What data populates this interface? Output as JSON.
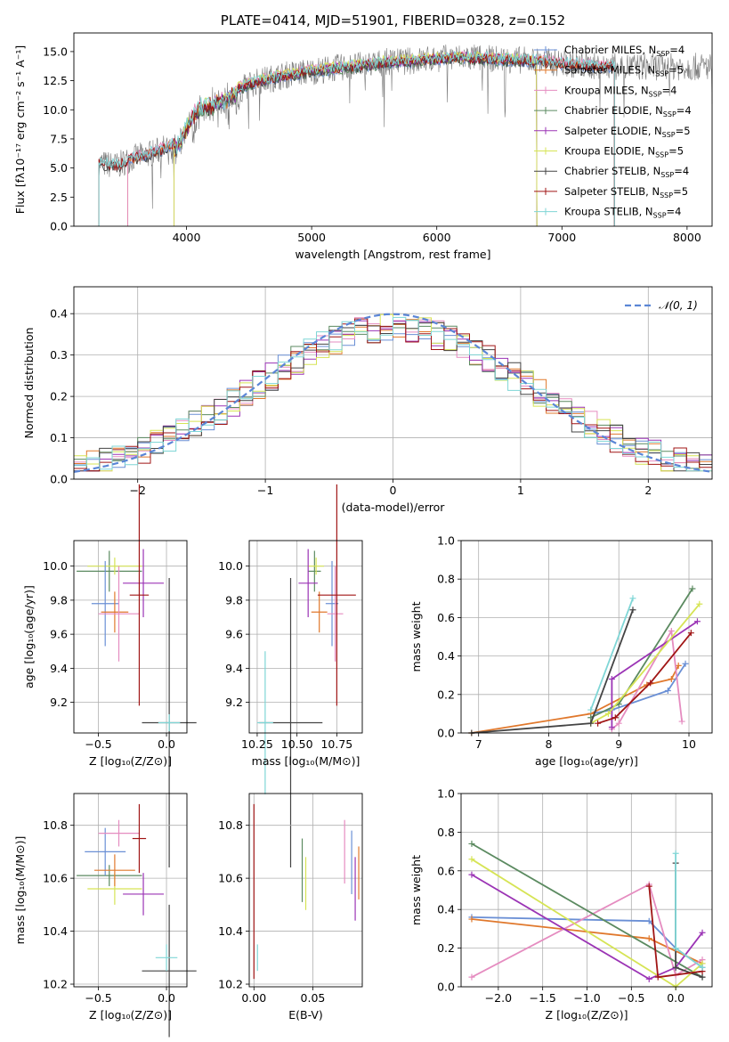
{
  "chart_data": [
    {
      "id": "spectrum",
      "type": "line",
      "title": "PLATE=0414, MJD=51901, FIBERID=0328, z=0.152",
      "xlabel": "wavelength [Angstrom, rest frame]",
      "ylabel": "Flux [fλ10⁻¹⁷ erg cm⁻² s⁻¹ A⁻¹]",
      "xlim": [
        3100,
        8200
      ],
      "ylim": [
        0,
        16.6
      ],
      "xticks": [
        "4000",
        "5000",
        "6000",
        "7000",
        "8000"
      ],
      "yticks": [
        "0.0",
        "2.5",
        "5.0",
        "7.5",
        "10.0",
        "12.5",
        "15.0"
      ],
      "grid": false,
      "legend_position": "top-right",
      "continuum": {
        "x": [
          3300,
          3450,
          3550,
          3700,
          3850,
          3950,
          4000,
          4100,
          4200,
          4300,
          4400,
          4500,
          4600,
          4800,
          5000,
          5200,
          5400,
          5600,
          5800,
          6000,
          6200,
          6400,
          6600,
          6800,
          7000,
          7200,
          7400
        ],
        "y": [
          5.4,
          5.2,
          5.8,
          6.2,
          6.8,
          7.5,
          9.0,
          10.5,
          10.8,
          11.2,
          11.8,
          12.2,
          12.5,
          13.0,
          13.3,
          13.6,
          13.8,
          14.1,
          14.2,
          14.4,
          14.5,
          14.4,
          14.3,
          14.2,
          14.0,
          13.8,
          13.7
        ]
      },
      "series": [
        {
          "name": "Chabrier MILES",
          "sub": "SSP",
          "n": "4",
          "color": "#6a8fd5",
          "xmin": 3530,
          "xmax": 7420
        },
        {
          "name": "Salpeter MILES",
          "sub": "SSP",
          "n": "5",
          "color": "#e0782c",
          "xmin": 3530,
          "xmax": 7420
        },
        {
          "name": "Kroupa MILES",
          "sub": "SSP",
          "n": "4",
          "color": "#e58cc0",
          "xmin": 3530,
          "xmax": 7420
        },
        {
          "name": "Chabrier ELODIE",
          "sub": "SSP",
          "n": "4",
          "color": "#5b8a60",
          "xmin": 3900,
          "xmax": 6800
        },
        {
          "name": "Salpeter ELODIE",
          "sub": "SSP",
          "n": "5",
          "color": "#9b34b5",
          "xmin": 3900,
          "xmax": 6800
        },
        {
          "name": "Kroupa ELODIE",
          "sub": "SSP",
          "n": "5",
          "color": "#d6e455",
          "xmin": 3900,
          "xmax": 6800
        },
        {
          "name": "Chabrier STELIB",
          "sub": "SSP",
          "n": "4",
          "color": "#444444",
          "xmin": 3300,
          "xmax": 7420
        },
        {
          "name": "Salpeter STELIB",
          "sub": "SSP",
          "n": "5",
          "color": "#a01515",
          "xmin": 3300,
          "xmax": 7420
        },
        {
          "name": "Kroupa STELIB",
          "sub": "SSP",
          "n": "4",
          "color": "#7fd6d6",
          "xmin": 3300,
          "xmax": 7420
        }
      ]
    },
    {
      "id": "residuals",
      "type": "histogram",
      "xlabel": "(data-model)/error",
      "ylabel": "Normed distribution",
      "xlim": [
        -2.5,
        2.5
      ],
      "ylim": [
        0,
        0.465
      ],
      "xticks": [
        "−2",
        "−1",
        "0",
        "1",
        "2"
      ],
      "yticks": [
        "0.0",
        "0.1",
        "0.2",
        "0.3",
        "0.4"
      ],
      "grid": true,
      "legend_position": "top-right",
      "legend": [
        "𝒩(0, 1)"
      ],
      "bin_width": 0.1,
      "reference_curve": {
        "name": "𝒩(0, 1)",
        "mean": 0,
        "sigma": 1,
        "color": "#5b86d6"
      }
    },
    {
      "id": "age_vs_z",
      "type": "errorbar",
      "xlabel": "Z [log₁₀(Z/Z⊙)]",
      "ylabel": "age  [log₁₀(age/yr)]",
      "xlim": [
        -0.68,
        0.15
      ],
      "ylim": [
        9.02,
        10.15
      ],
      "xticks": [
        "−0.5",
        "0.0"
      ],
      "xtick_values": [
        -0.5,
        0.0
      ],
      "yticks": [
        "9.2",
        "9.4",
        "9.6",
        "9.8",
        "10.0"
      ],
      "ytick_values": [
        9.2,
        9.4,
        9.6,
        9.8,
        10.0
      ],
      "grid": true,
      "points": [
        {
          "color": "#5b8a60",
          "x": -0.42,
          "xerr": 0.24,
          "y": 9.97,
          "yerr": 0.12
        },
        {
          "color": "#d6e455",
          "x": -0.38,
          "xerr": 0.2,
          "y": 10.0,
          "yerr": 0.05
        },
        {
          "color": "#6a8fd5",
          "x": -0.45,
          "xerr": 0.1,
          "y": 9.78,
          "yerr": 0.25
        },
        {
          "color": "#e0782c",
          "x": -0.38,
          "xerr": 0.1,
          "y": 9.73,
          "yerr": 0.12
        },
        {
          "color": "#e58cc0",
          "x": -0.35,
          "xerr": 0.15,
          "y": 9.72,
          "yerr": 0.28
        },
        {
          "color": "#9b34b5",
          "x": -0.17,
          "xerr": 0.15,
          "y": 9.9,
          "yerr": 0.2
        },
        {
          "color": "#a01515",
          "x": -0.2,
          "xerr": 0.07,
          "y": 9.83,
          "yerr": 0.65
        },
        {
          "color": "#444444",
          "x": 0.02,
          "xerr": 0.2,
          "y": 9.08,
          "yerr": 0.85
        },
        {
          "color": "#7fd6d6",
          "x": 0.02,
          "xerr": 0.08,
          "y": 9.08,
          "yerr": 0.05
        }
      ]
    },
    {
      "id": "age_vs_mass",
      "type": "errorbar",
      "xlabel": "mass [log₁₀(M/M⊙)]",
      "ylabel": "",
      "xlim": [
        10.2,
        10.91
      ],
      "ylim": [
        9.02,
        10.15
      ],
      "xticks": [
        "10.25",
        "10.50",
        "10.75"
      ],
      "xtick_values": [
        10.25,
        10.5,
        10.75
      ],
      "yticks": [
        "9.2",
        "9.4",
        "9.6",
        "9.8",
        "10.0"
      ],
      "ytick_values": [
        9.2,
        9.4,
        9.6,
        9.8,
        10.0
      ],
      "grid": true,
      "points": [
        {
          "color": "#5b8a60",
          "x": 10.61,
          "xerr": 0.04,
          "y": 9.97,
          "yerr": 0.12
        },
        {
          "color": "#d6e455",
          "x": 10.62,
          "xerr": 0.05,
          "y": 10.0,
          "yerr": 0.05
        },
        {
          "color": "#6a8fd5",
          "x": 10.72,
          "xerr": 0.04,
          "y": 9.78,
          "yerr": 0.25
        },
        {
          "color": "#e0782c",
          "x": 10.64,
          "xerr": 0.05,
          "y": 9.73,
          "yerr": 0.12
        },
        {
          "color": "#e58cc0",
          "x": 10.74,
          "xerr": 0.05,
          "y": 9.72,
          "yerr": 0.28
        },
        {
          "color": "#9b34b5",
          "x": 10.57,
          "xerr": 0.06,
          "y": 9.9,
          "yerr": 0.2
        },
        {
          "color": "#a01515",
          "x": 10.75,
          "xerr": 0.12,
          "y": 9.83,
          "yerr": 0.65
        },
        {
          "color": "#444444",
          "x": 10.46,
          "xerr": 0.2,
          "y": 9.08,
          "yerr": 0.85
        },
        {
          "color": "#7fd6d6",
          "x": 10.3,
          "xerr": 0.05,
          "y": 9.08,
          "yerr": 0.42
        }
      ]
    },
    {
      "id": "massweight_vs_age",
      "type": "line",
      "xlabel": "age  [log₁₀(age/yr)]",
      "ylabel": "mass weight",
      "xlim": [
        6.75,
        10.33
      ],
      "ylim": [
        0,
        1.0
      ],
      "xticks": [
        "7",
        "8",
        "9",
        "10"
      ],
      "xtick_values": [
        7,
        8,
        9,
        10
      ],
      "yticks": [
        "0.0",
        "0.2",
        "0.4",
        "0.6",
        "0.8",
        "1.0"
      ],
      "ytick_values": [
        0,
        0.2,
        0.4,
        0.6,
        0.8,
        1.0
      ],
      "grid": true,
      "series": [
        {
          "color": "#6a8fd5",
          "points": [
            [
              8.6,
              0.1
            ],
            [
              8.9,
              0.12
            ],
            [
              9.7,
              0.22
            ],
            [
              9.95,
              0.36
            ]
          ]
        },
        {
          "color": "#e0782c",
          "points": [
            [
              6.9,
              0.0
            ],
            [
              8.6,
              0.1
            ],
            [
              9.4,
              0.25
            ],
            [
              9.75,
              0.28
            ],
            [
              9.85,
              0.35
            ]
          ]
        },
        {
          "color": "#e58cc0",
          "points": [
            [
              8.9,
              0.02
            ],
            [
              9.0,
              0.05
            ],
            [
              9.75,
              0.53
            ],
            [
              9.9,
              0.06
            ]
          ]
        },
        {
          "color": "#5b8a60",
          "points": [
            [
              8.6,
              0.08
            ],
            [
              9.0,
              0.15
            ],
            [
              10.05,
              0.75
            ]
          ]
        },
        {
          "color": "#9b34b5",
          "points": [
            [
              8.9,
              0.03
            ],
            [
              8.9,
              0.28
            ],
            [
              10.12,
              0.58
            ]
          ]
        },
        {
          "color": "#d6e455",
          "points": [
            [
              8.6,
              0.05
            ],
            [
              8.85,
              0.1
            ],
            [
              10.15,
              0.67
            ]
          ]
        },
        {
          "color": "#444444",
          "points": [
            [
              6.9,
              0.0
            ],
            [
              8.6,
              0.05
            ],
            [
              9.2,
              0.64
            ]
          ]
        },
        {
          "color": "#a01515",
          "points": [
            [
              8.7,
              0.05
            ],
            [
              8.95,
              0.08
            ],
            [
              9.45,
              0.26
            ],
            [
              10.03,
              0.52
            ]
          ]
        },
        {
          "color": "#7fd6d6",
          "points": [
            [
              8.6,
              0.12
            ],
            [
              9.2,
              0.7
            ]
          ]
        }
      ]
    },
    {
      "id": "mass_vs_z",
      "type": "errorbar",
      "xlabel": "Z [log₁₀(Z/Z⊙)]",
      "ylabel": "mass [log₁₀(M/M⊙)]",
      "xlim": [
        -0.68,
        0.15
      ],
      "ylim": [
        10.19,
        10.92
      ],
      "xticks": [
        "−0.5",
        "0.0"
      ],
      "xtick_values": [
        -0.5,
        0.0
      ],
      "yticks": [
        "10.2",
        "10.4",
        "10.6",
        "10.8"
      ],
      "ytick_values": [
        10.2,
        10.4,
        10.6,
        10.8
      ],
      "grid": true,
      "points": [
        {
          "color": "#5b8a60",
          "x": -0.42,
          "xerr": 0.24,
          "y": 10.61,
          "yerr": 0.04
        },
        {
          "color": "#d6e455",
          "x": -0.38,
          "xerr": 0.2,
          "y": 10.56,
          "yerr": 0.06
        },
        {
          "color": "#6a8fd5",
          "x": -0.45,
          "xerr": 0.15,
          "y": 10.7,
          "yerr": 0.09
        },
        {
          "color": "#e0782c",
          "x": -0.38,
          "xerr": 0.15,
          "y": 10.63,
          "yerr": 0.06
        },
        {
          "color": "#e58cc0",
          "x": -0.35,
          "xerr": 0.15,
          "y": 10.77,
          "yerr": 0.05
        },
        {
          "color": "#9b34b5",
          "x": -0.17,
          "xerr": 0.15,
          "y": 10.54,
          "yerr": 0.08
        },
        {
          "color": "#a01515",
          "x": -0.2,
          "xerr": 0.05,
          "y": 10.75,
          "yerr": 0.13
        },
        {
          "color": "#444444",
          "x": 0.02,
          "xerr": 0.2,
          "y": 10.25,
          "yerr": 0.25
        },
        {
          "color": "#7fd6d6",
          "x": 0.0,
          "xerr": 0.08,
          "y": 10.3,
          "yerr": 0.05
        }
      ]
    },
    {
      "id": "mass_vs_ebv",
      "type": "errorbar",
      "xlabel": "E(B-V)",
      "ylabel": "",
      "xlim": [
        -0.004,
        0.092
      ],
      "ylim": [
        10.19,
        10.92
      ],
      "xticks": [
        "0.00",
        "0.05"
      ],
      "xtick_values": [
        0.0,
        0.05
      ],
      "yticks": [
        "10.2",
        "10.4",
        "10.6",
        "10.8"
      ],
      "ytick_values": [
        10.2,
        10.4,
        10.6,
        10.8
      ],
      "grid": true,
      "points": [
        {
          "color": "#a01515",
          "x": 0.0,
          "xerr": 0,
          "y": 10.55,
          "yerr": 0.33
        },
        {
          "color": "#7fd6d6",
          "x": 0.003,
          "xerr": 0,
          "y": 10.3,
          "yerr": 0.05
        },
        {
          "color": "#5b8a60",
          "x": 0.041,
          "xerr": 0,
          "y": 10.63,
          "yerr": 0.12
        },
        {
          "color": "#d6e455",
          "x": 0.044,
          "xerr": 0,
          "y": 10.58,
          "yerr": 0.1
        },
        {
          "color": "#e58cc0",
          "x": 0.077,
          "xerr": 0,
          "y": 10.7,
          "yerr": 0.12
        },
        {
          "color": "#6a8fd5",
          "x": 0.083,
          "xerr": 0,
          "y": 10.66,
          "yerr": 0.12
        },
        {
          "color": "#9b34b5",
          "x": 0.086,
          "xerr": 0,
          "y": 10.56,
          "yerr": 0.12
        },
        {
          "color": "#e0782c",
          "x": 0.089,
          "xerr": 0,
          "y": 10.62,
          "yerr": 0.1
        }
      ]
    },
    {
      "id": "massweight_vs_z",
      "type": "line",
      "xlabel": "Z [log₁₀(Z/Z⊙)]",
      "ylabel": "mass weight",
      "xlim": [
        -2.42,
        0.41
      ],
      "ylim": [
        0,
        1.0
      ],
      "xticks": [
        "−2.0",
        "−1.5",
        "−1.0",
        "−0.5",
        "0.0"
      ],
      "xtick_values": [
        -2.0,
        -1.5,
        -1.0,
        -0.5,
        0.0
      ],
      "yticks": [
        "0.0",
        "0.2",
        "0.4",
        "0.6",
        "0.8",
        "1.0"
      ],
      "ytick_values": [
        0,
        0.2,
        0.4,
        0.6,
        0.8,
        1.0
      ],
      "grid": true,
      "series": [
        {
          "color": "#6a8fd5",
          "points": [
            [
              -2.3,
              0.36
            ],
            [
              -0.3,
              0.34
            ],
            [
              0.0,
              0.2
            ],
            [
              0.3,
              0.1
            ]
          ]
        },
        {
          "color": "#e0782c",
          "points": [
            [
              -2.3,
              0.35
            ],
            [
              -0.3,
              0.25
            ],
            [
              0.3,
              0.12
            ]
          ]
        },
        {
          "color": "#e58cc0",
          "points": [
            [
              -2.3,
              0.05
            ],
            [
              -0.3,
              0.53
            ],
            [
              0.0,
              0.06
            ],
            [
              0.3,
              0.14
            ]
          ]
        },
        {
          "color": "#5b8a60",
          "points": [
            [
              -2.3,
              0.74
            ],
            [
              0.3,
              0.05
            ]
          ]
        },
        {
          "color": "#9b34b5",
          "points": [
            [
              -2.3,
              0.58
            ],
            [
              -0.3,
              0.04
            ],
            [
              0.0,
              0.1
            ],
            [
              0.3,
              0.28
            ]
          ]
        },
        {
          "color": "#d6e455",
          "points": [
            [
              -2.3,
              0.66
            ],
            [
              0.0,
              0.0
            ],
            [
              0.3,
              0.12
            ]
          ]
        },
        {
          "color": "#444444",
          "points": [
            [
              0.0,
              0.64
            ],
            [
              0.0,
              0.1
            ],
            [
              0.3,
              0.05
            ]
          ]
        },
        {
          "color": "#a01515",
          "points": [
            [
              -0.3,
              0.52
            ],
            [
              -0.2,
              0.05
            ],
            [
              0.3,
              0.08
            ]
          ]
        },
        {
          "color": "#7fd6d6",
          "points": [
            [
              0.0,
              0.69
            ],
            [
              0.0,
              0.2
            ],
            [
              0.3,
              0.1
            ]
          ]
        }
      ]
    }
  ]
}
